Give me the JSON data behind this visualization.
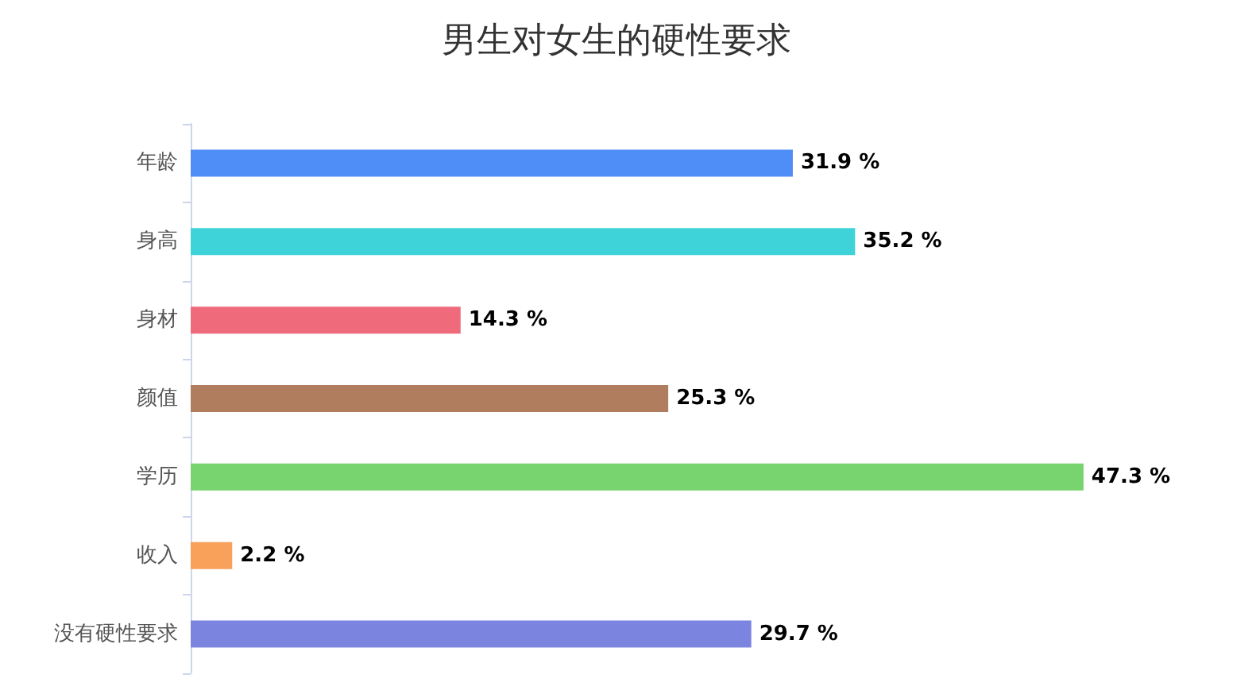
{
  "chart_data": {
    "type": "bar",
    "orientation": "horizontal",
    "title": "男生对女生的硬性要求",
    "categories": [
      "年龄",
      "身高",
      "身材",
      "颜值",
      "学历",
      "收入",
      "没有硬性要求"
    ],
    "values": [
      31.9,
      35.2,
      14.3,
      25.3,
      47.3,
      2.2,
      29.7
    ],
    "colors": [
      "#4f8ef7",
      "#3ed3d9",
      "#ef6b7c",
      "#b07e5e",
      "#78d46e",
      "#f9a05b",
      "#7b85e0"
    ],
    "value_labels": [
      "31.9 %",
      "35.2 %",
      "14.3 %",
      "25.3 %",
      "47.3 %",
      "2.2 %",
      "29.7 %"
    ]
  }
}
